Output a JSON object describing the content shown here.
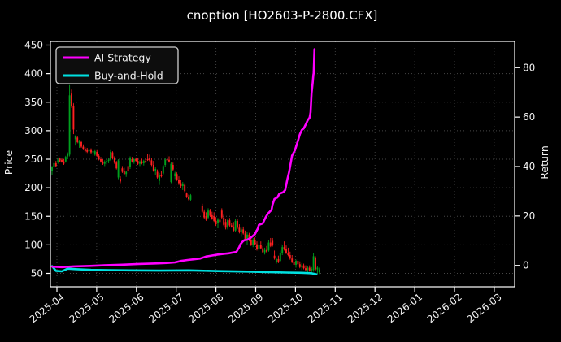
{
  "window": {
    "title": "cnoption [HO2603-P-2800.CFX]"
  },
  "legend": {
    "entries": [
      {
        "label": "AI Strategy",
        "color": "#ff00ff"
      },
      {
        "label": "Buy-and-Hold",
        "color": "#00e1e1"
      }
    ]
  },
  "chart_data": {
    "type": "candlestick+line",
    "title": "cnoption [HO2603-P-2800.CFX]",
    "grid": true,
    "colors": {
      "background": "#000000",
      "frame": "#ffffff",
      "grid": "#464646",
      "text": "#f2f2f2",
      "candle_up": "#00a01e",
      "candle_down": "#ff2020",
      "ai_strategy": "#ff00ff",
      "buy_and_hold": "#00e1e1"
    },
    "left_axis": {
      "label": "Price",
      "ticks": [
        50,
        100,
        150,
        200,
        250,
        300,
        350,
        400,
        450
      ],
      "range": [
        26,
        456
      ]
    },
    "right_axis": {
      "label": "Return",
      "ticks": [
        0,
        20,
        40,
        60,
        80
      ],
      "range": [
        -8.6,
        90.6
      ]
    },
    "x_axis": {
      "tick_labels": [
        "2025-04",
        "2025-05",
        "2025-06",
        "2025-07",
        "2025-08",
        "2025-09",
        "2025-10",
        "2025-11",
        "2025-12",
        "2026-01",
        "2026-02",
        "2026-03"
      ],
      "rotation_deg": 38
    },
    "candles": {
      "axis": "left",
      "start_label": "2025-04",
      "format": [
        "open",
        "high",
        "low",
        "close"
      ],
      "values": [
        [
          230,
          238,
          222,
          236
        ],
        [
          236,
          245,
          228,
          243
        ],
        [
          243,
          247,
          236,
          238
        ],
        [
          246,
          252,
          242,
          248
        ],
        [
          251,
          253,
          245,
          246
        ],
        [
          249,
          252,
          244,
          245
        ],
        [
          246,
          250,
          240,
          242
        ],
        [
          246,
          256,
          244,
          254
        ],
        [
          255,
          262,
          250,
          260
        ],
        [
          258,
          380,
          255,
          362
        ],
        [
          365,
          372,
          340,
          344
        ],
        [
          344,
          348,
          294,
          302
        ],
        [
          285,
          292,
          274,
          290
        ],
        [
          288,
          291,
          278,
          280
        ],
        [
          278,
          284,
          270,
          281
        ],
        [
          280,
          283,
          270,
          272
        ],
        [
          272,
          276,
          266,
          268
        ],
        [
          268,
          271,
          262,
          264
        ],
        [
          266,
          270,
          261,
          263
        ],
        [
          264,
          268,
          259,
          266
        ],
        [
          266,
          269,
          260,
          262
        ],
        [
          262,
          266,
          256,
          264
        ],
        [
          258,
          266,
          256,
          264
        ],
        [
          263,
          266,
          254,
          256
        ],
        [
          256,
          260,
          248,
          250
        ],
        [
          250,
          254,
          244,
          246
        ],
        [
          246,
          250,
          240,
          242
        ],
        [
          242,
          248,
          238,
          245
        ],
        [
          245,
          250,
          241,
          247
        ],
        [
          247,
          252,
          243,
          249
        ],
        [
          249,
          266,
          247,
          263
        ],
        [
          262,
          264,
          250,
          252
        ],
        [
          252,
          255,
          242,
          244
        ],
        [
          244,
          247,
          232,
          234
        ],
        [
          218,
          250,
          215,
          248
        ],
        [
          216,
          220,
          208,
          211
        ],
        [
          234,
          238,
          226,
          228
        ],
        [
          230,
          235,
          222,
          224
        ],
        [
          224,
          230,
          219,
          228
        ],
        [
          238,
          244,
          226,
          230
        ],
        [
          236,
          255,
          233,
          252
        ],
        [
          250,
          254,
          244,
          246
        ],
        [
          246,
          252,
          242,
          250
        ],
        [
          250,
          253,
          245,
          247
        ],
        [
          247,
          252,
          240,
          242
        ],
        [
          242,
          248,
          238,
          246
        ],
        [
          246,
          251,
          241,
          243
        ],
        [
          243,
          249,
          239,
          247
        ],
        [
          247,
          252,
          243,
          245
        ],
        [
          250,
          259,
          247,
          249
        ],
        [
          252,
          258,
          246,
          248
        ],
        [
          248,
          252,
          238,
          240
        ],
        [
          240,
          247,
          228,
          230
        ],
        [
          230,
          236,
          222,
          233
        ],
        [
          228,
          232,
          216,
          218
        ],
        [
          212,
          226,
          205,
          223
        ],
        [
          223,
          230,
          218,
          220
        ],
        [
          225,
          240,
          222,
          238
        ],
        [
          240,
          252,
          237,
          249
        ],
        [
          250,
          258,
          246,
          248
        ],
        [
          249,
          255,
          244,
          246
        ],
        [
          210,
          245,
          208,
          242
        ],
        [
          240,
          244,
          230,
          232
        ],
        [
          220,
          228,
          215,
          225
        ],
        [
          224,
          227,
          212,
          214
        ],
        [
          214,
          220,
          205,
          208
        ],
        [
          208,
          214,
          200,
          203
        ],
        [
          203,
          210,
          196,
          206
        ],
        [
          205,
          208,
          192,
          194
        ],
        [
          190,
          192,
          182,
          184
        ],
        [
          184,
          188,
          178,
          180
        ],
        [
          179,
          189,
          176,
          187
        ],
        null,
        null,
        null,
        null,
        null,
        [
          168,
          172,
          156,
          158
        ],
        [
          158,
          162,
          146,
          148
        ],
        [
          150,
          157,
          142,
          144
        ],
        [
          148,
          164,
          145,
          160
        ],
        [
          160,
          163,
          149,
          151
        ],
        [
          152,
          158,
          144,
          146
        ],
        [
          150,
          157,
          140,
          142
        ],
        [
          142,
          148,
          133,
          136
        ],
        [
          138,
          147,
          129,
          144
        ],
        [
          144,
          150,
          138,
          140
        ],
        [
          160,
          164,
          146,
          148
        ],
        [
          148,
          153,
          133,
          135
        ],
        [
          140,
          146,
          127,
          130
        ],
        [
          130,
          146,
          127,
          143
        ],
        [
          143,
          147,
          132,
          134
        ],
        [
          134,
          139,
          130,
          132
        ],
        [
          132,
          140,
          122,
          125
        ],
        [
          125,
          146,
          123,
          142
        ],
        [
          142,
          145,
          128,
          130
        ],
        [
          130,
          136,
          120,
          122
        ],
        [
          122,
          130,
          114,
          127
        ],
        [
          127,
          132,
          118,
          120
        ],
        [
          120,
          125,
          108,
          110
        ],
        [
          110,
          122,
          100,
          118
        ],
        [
          118,
          121,
          106,
          108
        ],
        [
          108,
          115,
          98,
          100
        ],
        [
          100,
          112,
          96,
          109
        ],
        [
          109,
          113,
          99,
          101
        ],
        [
          101,
          106,
          90,
          92
        ],
        [
          92,
          104,
          88,
          100
        ],
        [
          100,
          106,
          92,
          94
        ],
        [
          94,
          98,
          85,
          87
        ],
        [
          87,
          95,
          83,
          91
        ],
        [
          91,
          98,
          86,
          88
        ],
        [
          90,
          108,
          88,
          104
        ],
        [
          104,
          112,
          96,
          98
        ],
        [
          107,
          112,
          97,
          99
        ],
        [
          81,
          90,
          74,
          76
        ],
        [
          70,
          78,
          67,
          75
        ],
        [
          75,
          81,
          68,
          70
        ],
        [
          72,
          90,
          70,
          86
        ],
        [
          86,
          100,
          82,
          96
        ],
        [
          96,
          106,
          90,
          92
        ],
        [
          92,
          99,
          84,
          86
        ],
        [
          86,
          95,
          80,
          82
        ],
        [
          82,
          88,
          74,
          76
        ],
        [
          76,
          82,
          68,
          70
        ],
        [
          70,
          76,
          63,
          65
        ],
        [
          65,
          74,
          60,
          72
        ],
        [
          72,
          75,
          64,
          66
        ],
        [
          66,
          71,
          59,
          61
        ],
        [
          61,
          68,
          56,
          64
        ],
        [
          64,
          67,
          57,
          59
        ],
        [
          59,
          64,
          54,
          56
        ],
        [
          56,
          62,
          51,
          60
        ],
        [
          60,
          64,
          53,
          55
        ],
        [
          55,
          61,
          50,
          58
        ],
        [
          56,
          85,
          53,
          80
        ],
        [
          78,
          80,
          55,
          57
        ],
        [
          57,
          62,
          50,
          60
        ],
        [
          52,
          60,
          49,
          57
        ]
      ]
    },
    "series": [
      {
        "name": "Buy-and-Hold",
        "axis": "right",
        "color": "#00e1e1",
        "width": 2.6,
        "points": [
          [
            0,
            -0.3
          ],
          [
            2,
            -2.2
          ],
          [
            5,
            -2.4
          ],
          [
            8,
            -1.3
          ],
          [
            12,
            -1.5
          ],
          [
            20,
            -1.8
          ],
          [
            30,
            -1.9
          ],
          [
            40,
            -2.0
          ],
          [
            55,
            -2.1
          ],
          [
            70,
            -2.0
          ],
          [
            85,
            -2.3
          ],
          [
            100,
            -2.5
          ],
          [
            110,
            -2.7
          ],
          [
            120,
            -2.9
          ],
          [
            128,
            -3.0
          ],
          [
            133,
            -3.2
          ],
          [
            135.5,
            -3.6
          ]
        ]
      },
      {
        "name": "AI Strategy",
        "axis": "right",
        "color": "#ff00ff",
        "width": 2.6,
        "points": [
          [
            0,
            -0.5
          ],
          [
            5,
            -0.7
          ],
          [
            11,
            -0.4
          ],
          [
            19.5,
            -0.2
          ],
          [
            28,
            0.1
          ],
          [
            36,
            0.3
          ],
          [
            44.5,
            0.6
          ],
          [
            53,
            0.8
          ],
          [
            59,
            1.0
          ],
          [
            63,
            1.2
          ],
          [
            66,
            1.8
          ],
          [
            69.5,
            2.2
          ],
          [
            73,
            2.5
          ],
          [
            76,
            2.8
          ],
          [
            79,
            3.6
          ],
          [
            82,
            4.0
          ],
          [
            85,
            4.4
          ],
          [
            88,
            4.7
          ],
          [
            90.5,
            4.9
          ],
          [
            92.5,
            5.2
          ],
          [
            94.5,
            5.5
          ],
          [
            96,
            7.5
          ],
          [
            96.5,
            8.5
          ],
          [
            97.5,
            9.5
          ],
          [
            98.5,
            10.2
          ],
          [
            100,
            10.4
          ],
          [
            101.5,
            11.0
          ],
          [
            103,
            12.0
          ],
          [
            104,
            12.7
          ],
          [
            105.5,
            15.0
          ],
          [
            106,
            16.4
          ],
          [
            108,
            17.0
          ],
          [
            109.5,
            19.5
          ],
          [
            110.5,
            20.8
          ],
          [
            112.5,
            22.5
          ],
          [
            113,
            24.6
          ],
          [
            114,
            26.9
          ],
          [
            115.5,
            27.5
          ],
          [
            116.5,
            29.0
          ],
          [
            118.5,
            29.6
          ],
          [
            119.5,
            30.5
          ],
          [
            120.5,
            34.5
          ],
          [
            121.5,
            37.8
          ],
          [
            123,
            44.4
          ],
          [
            124.5,
            46.6
          ],
          [
            126,
            50.4
          ],
          [
            127,
            53.0
          ],
          [
            128,
            54.8
          ],
          [
            129,
            55.4
          ],
          [
            130,
            57.0
          ],
          [
            131,
            58.7
          ],
          [
            132,
            59.8
          ],
          [
            132.5,
            62.0
          ],
          [
            133,
            69.6
          ],
          [
            133.6,
            74.0
          ],
          [
            133.9,
            77.0
          ],
          [
            134.1,
            77.8
          ],
          [
            134.5,
            87.5
          ]
        ]
      }
    ]
  }
}
